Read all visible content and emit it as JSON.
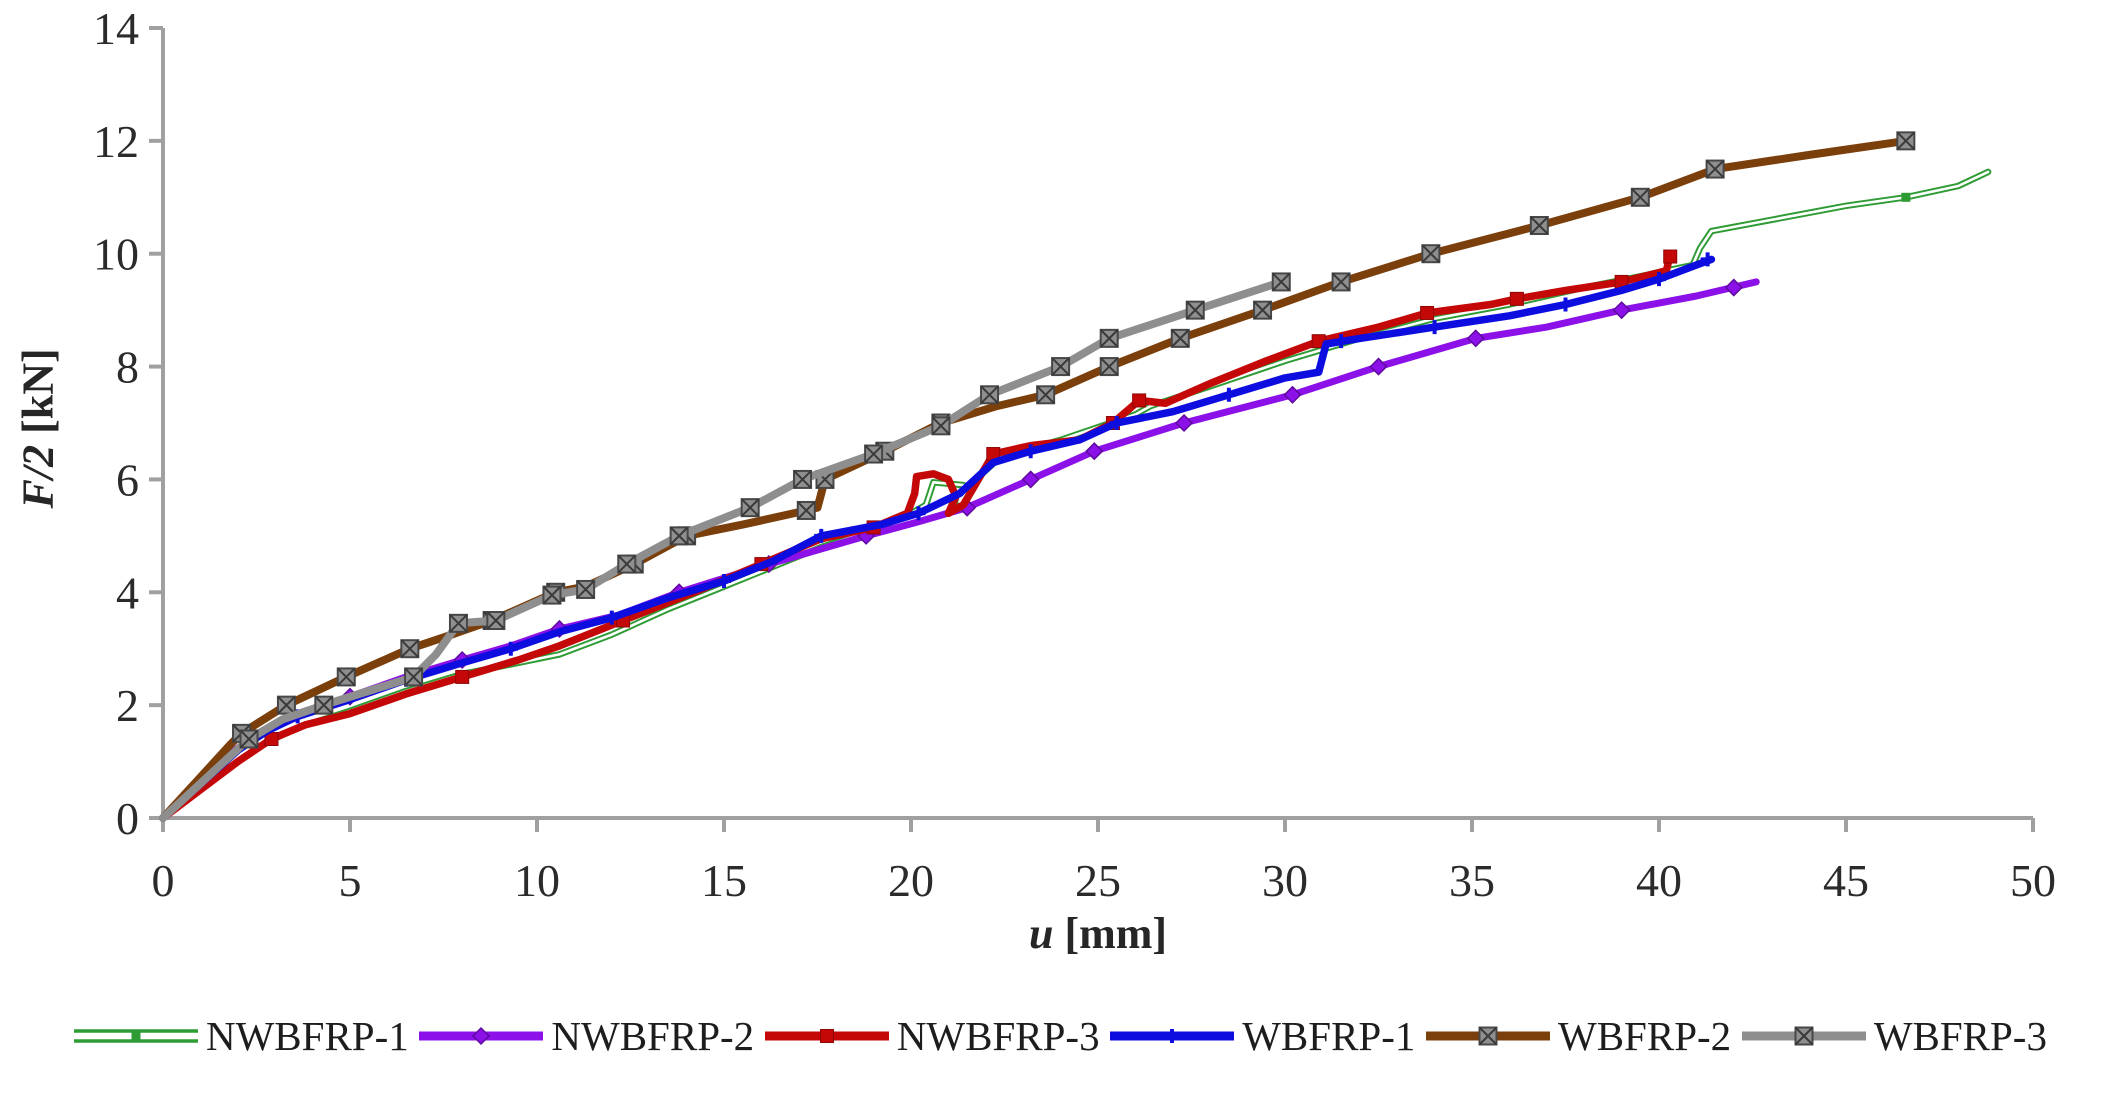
{
  "chart_data": {
    "type": "line",
    "title": "",
    "xlabel": "u [mm]",
    "ylabel": "F/2 [kN]",
    "xlabel_italic": "u",
    "xlabel_unit": " [mm]",
    "ylabel_italic": "F/2",
    "ylabel_unit": " [kN]",
    "xlim": [
      0,
      50
    ],
    "ylim": [
      0,
      14
    ],
    "xticks": [
      0,
      5,
      10,
      15,
      20,
      25,
      30,
      35,
      40,
      45,
      50
    ],
    "yticks": [
      0,
      2,
      4,
      6,
      8,
      10,
      12,
      14
    ],
    "grid": false,
    "legend_position": "bottom",
    "axis_color": "#a0a0a0",
    "tick_label_color": "#2b2b2b",
    "series": [
      {
        "name": "NWBFRP-1",
        "color": "#2E9B34",
        "marker": "tiny-square",
        "marker_fill": "#2E9B34",
        "marker_stroke": "#1e6b22",
        "double_line": true,
        "width": 6.5,
        "points": [
          [
            0,
            0
          ],
          [
            1,
            0.5
          ],
          [
            2,
            1.0
          ],
          [
            2.8,
            1.35
          ],
          [
            3.6,
            1.6
          ],
          [
            5,
            1.9
          ],
          [
            6.5,
            2.25
          ],
          [
            8,
            2.55
          ],
          [
            9.5,
            2.75
          ],
          [
            10.6,
            2.9
          ],
          [
            12,
            3.25
          ],
          [
            13.5,
            3.7
          ],
          [
            15,
            4.1
          ],
          [
            16.3,
            4.45
          ],
          [
            17.6,
            4.8
          ],
          [
            19,
            5.1
          ],
          [
            20,
            5.4
          ],
          [
            20.4,
            5.55
          ],
          [
            20.6,
            5.95
          ],
          [
            21.4,
            5.9
          ],
          [
            21.3,
            5.6
          ],
          [
            21.9,
            6.1
          ],
          [
            22.4,
            6.4
          ],
          [
            24,
            6.7
          ],
          [
            26,
            7.15
          ],
          [
            26.4,
            7.3
          ],
          [
            28,
            7.65
          ],
          [
            30,
            8.1
          ],
          [
            32,
            8.5
          ],
          [
            34,
            8.85
          ],
          [
            36,
            9.1
          ],
          [
            38,
            9.4
          ],
          [
            39.5,
            9.6
          ],
          [
            40.9,
            9.8
          ],
          [
            41.1,
            10.1
          ],
          [
            41.4,
            10.4
          ],
          [
            43,
            10.6
          ],
          [
            45,
            10.85
          ],
          [
            46.6,
            11.0
          ],
          [
            48,
            11.2
          ],
          [
            48.8,
            11.45
          ]
        ],
        "marker_points": [
          [
            46.6,
            11.0
          ]
        ]
      },
      {
        "name": "NWBFRP-2",
        "color": "#8C10E8",
        "marker": "diamond",
        "marker_fill": "#8C10E8",
        "marker_stroke": "#5e0a9e",
        "double_line": false,
        "width": 7,
        "points": [
          [
            0,
            0
          ],
          [
            0.9,
            0.6
          ],
          [
            1.8,
            1.15
          ],
          [
            2.7,
            1.55
          ],
          [
            3.6,
            1.85
          ],
          [
            5,
            2.15
          ],
          [
            6.5,
            2.5
          ],
          [
            8,
            2.8
          ],
          [
            9.3,
            3.05
          ],
          [
            10.6,
            3.35
          ],
          [
            12.2,
            3.6
          ],
          [
            13.8,
            4.0
          ],
          [
            16.2,
            4.5
          ],
          [
            18.8,
            5.0
          ],
          [
            20.2,
            5.25
          ],
          [
            21.5,
            5.5
          ],
          [
            23.2,
            6.0
          ],
          [
            24.9,
            6.5
          ],
          [
            27.3,
            7.0
          ],
          [
            30.2,
            7.5
          ],
          [
            32.5,
            8.0
          ],
          [
            35.1,
            8.5
          ],
          [
            37,
            8.7
          ],
          [
            39,
            9.0
          ],
          [
            41,
            9.25
          ],
          [
            42.6,
            9.5
          ]
        ],
        "marker_points": [
          [
            5,
            2.15
          ],
          [
            8,
            2.8
          ],
          [
            10.6,
            3.35
          ],
          [
            13.8,
            4.0
          ],
          [
            16.2,
            4.5
          ],
          [
            18.8,
            5.0
          ],
          [
            21.5,
            5.5
          ],
          [
            23.2,
            6.0
          ],
          [
            24.9,
            6.5
          ],
          [
            27.3,
            7.0
          ],
          [
            30.2,
            7.5
          ],
          [
            32.5,
            8.0
          ],
          [
            35.1,
            8.5
          ],
          [
            39,
            9.0
          ],
          [
            42,
            9.4
          ]
        ]
      },
      {
        "name": "NWBFRP-3",
        "color": "#C40808",
        "marker": "square",
        "marker_fill": "#C40808",
        "marker_stroke": "#8f0606",
        "double_line": false,
        "width": 7.5,
        "points": [
          [
            0,
            0
          ],
          [
            1,
            0.5
          ],
          [
            2,
            1.0
          ],
          [
            2.9,
            1.4
          ],
          [
            3.8,
            1.65
          ],
          [
            5,
            1.85
          ],
          [
            6.5,
            2.2
          ],
          [
            8,
            2.5
          ],
          [
            9.5,
            2.8
          ],
          [
            10.6,
            3.05
          ],
          [
            12.3,
            3.5
          ],
          [
            14.2,
            4.0
          ],
          [
            16,
            4.5
          ],
          [
            17.6,
            4.95
          ],
          [
            19,
            5.15
          ],
          [
            19.9,
            5.4
          ],
          [
            20.1,
            5.75
          ],
          [
            20.15,
            6.05
          ],
          [
            20.6,
            6.1
          ],
          [
            21.0,
            6.0
          ],
          [
            21.2,
            5.7
          ],
          [
            21.0,
            5.4
          ],
          [
            21.4,
            5.55
          ],
          [
            22.2,
            6.45
          ],
          [
            23.2,
            6.6
          ],
          [
            24.5,
            6.7
          ],
          [
            25.4,
            7.0
          ],
          [
            26.1,
            7.4
          ],
          [
            26.8,
            7.35
          ],
          [
            28,
            7.7
          ],
          [
            29.5,
            8.1
          ],
          [
            30.9,
            8.45
          ],
          [
            32.5,
            8.7
          ],
          [
            33.8,
            8.95
          ],
          [
            35.5,
            9.1
          ],
          [
            36.2,
            9.2
          ],
          [
            37.5,
            9.35
          ],
          [
            39,
            9.5
          ],
          [
            39.9,
            9.65
          ],
          [
            40.2,
            9.7
          ],
          [
            40.3,
            10.0
          ]
        ],
        "marker_points": [
          [
            2.9,
            1.4
          ],
          [
            8,
            2.5
          ],
          [
            12.3,
            3.5
          ],
          [
            16,
            4.5
          ],
          [
            19,
            5.15
          ],
          [
            22.2,
            6.45
          ],
          [
            25.4,
            7.0
          ],
          [
            26.1,
            7.4
          ],
          [
            30.9,
            8.45
          ],
          [
            33.8,
            8.95
          ],
          [
            36.2,
            9.2
          ],
          [
            39,
            9.5
          ],
          [
            40.3,
            9.95
          ]
        ]
      },
      {
        "name": "WBFRP-1",
        "color": "#0D0DE0",
        "marker": "cross",
        "marker_fill": "#0D0DE0",
        "marker_stroke": "#0a0aa8",
        "double_line": false,
        "width": 7.5,
        "points": [
          [
            0,
            0
          ],
          [
            1,
            0.6
          ],
          [
            2,
            1.2
          ],
          [
            2.8,
            1.55
          ],
          [
            3.6,
            1.8
          ],
          [
            5,
            2.1
          ],
          [
            6.5,
            2.45
          ],
          [
            8,
            2.75
          ],
          [
            9.3,
            3.0
          ],
          [
            10.6,
            3.3
          ],
          [
            12,
            3.55
          ],
          [
            13.5,
            3.9
          ],
          [
            15,
            4.2
          ],
          [
            16.3,
            4.55
          ],
          [
            17.6,
            5.0
          ],
          [
            19.2,
            5.2
          ],
          [
            20.2,
            5.4
          ],
          [
            21.3,
            5.75
          ],
          [
            22.2,
            6.3
          ],
          [
            23.2,
            6.5
          ],
          [
            24.5,
            6.7
          ],
          [
            25.5,
            7.0
          ],
          [
            27,
            7.2
          ],
          [
            28.5,
            7.5
          ],
          [
            30,
            7.8
          ],
          [
            30.9,
            7.9
          ],
          [
            31.1,
            8.4
          ],
          [
            32,
            8.5
          ],
          [
            34,
            8.7
          ],
          [
            36,
            8.9
          ],
          [
            37.5,
            9.1
          ],
          [
            39,
            9.35
          ],
          [
            40,
            9.55
          ],
          [
            41,
            9.8
          ],
          [
            41.4,
            9.9
          ]
        ],
        "marker_points": [
          [
            3.6,
            1.8
          ],
          [
            6.5,
            2.45
          ],
          [
            9.3,
            3.0
          ],
          [
            12,
            3.55
          ],
          [
            15,
            4.2
          ],
          [
            17.6,
            5.0
          ],
          [
            20.2,
            5.4
          ],
          [
            23.2,
            6.5
          ],
          [
            25.5,
            7.0
          ],
          [
            28.5,
            7.5
          ],
          [
            31.5,
            8.45
          ],
          [
            34,
            8.7
          ],
          [
            37.5,
            9.1
          ],
          [
            40,
            9.55
          ],
          [
            41.3,
            9.9
          ]
        ]
      },
      {
        "name": "WBFRP-2",
        "color": "#7B3F0C",
        "marker": "square-x",
        "marker_fill": "#8f8f8f",
        "marker_stroke": "#474747",
        "double_line": false,
        "width": 8,
        "points": [
          [
            0,
            0
          ],
          [
            0.9,
            0.65
          ],
          [
            1.8,
            1.3
          ],
          [
            2.1,
            1.5
          ],
          [
            3.3,
            2.0
          ],
          [
            4.9,
            2.5
          ],
          [
            6.6,
            3.0
          ],
          [
            7.5,
            3.2
          ],
          [
            8.8,
            3.5
          ],
          [
            10.5,
            4.0
          ],
          [
            11.3,
            4.1
          ],
          [
            12.6,
            4.5
          ],
          [
            14,
            5.0
          ],
          [
            15.5,
            5.2
          ],
          [
            17.2,
            5.45
          ],
          [
            17.5,
            5.5
          ],
          [
            17.7,
            6.0
          ],
          [
            19.3,
            6.5
          ],
          [
            20.8,
            7.0
          ],
          [
            22.3,
            7.3
          ],
          [
            23.6,
            7.5
          ],
          [
            25.3,
            8.0
          ],
          [
            27.2,
            8.5
          ],
          [
            29.4,
            9.0
          ],
          [
            31.5,
            9.5
          ],
          [
            33.9,
            10.0
          ],
          [
            36.8,
            10.5
          ],
          [
            39.5,
            11.0
          ],
          [
            41.5,
            11.5
          ],
          [
            44,
            11.75
          ],
          [
            46.6,
            12.0
          ]
        ],
        "marker_points": [
          [
            2.1,
            1.5
          ],
          [
            3.3,
            2.0
          ],
          [
            4.9,
            2.5
          ],
          [
            6.6,
            3.0
          ],
          [
            8.8,
            3.5
          ],
          [
            10.5,
            4.0
          ],
          [
            12.6,
            4.5
          ],
          [
            14,
            5.0
          ],
          [
            17.2,
            5.45
          ],
          [
            17.7,
            6.0
          ],
          [
            19.3,
            6.5
          ],
          [
            20.8,
            7.0
          ],
          [
            23.6,
            7.5
          ],
          [
            25.3,
            8.0
          ],
          [
            27.2,
            8.5
          ],
          [
            29.4,
            9.0
          ],
          [
            31.5,
            9.5
          ],
          [
            33.9,
            10.0
          ],
          [
            36.8,
            10.5
          ],
          [
            39.5,
            11.0
          ],
          [
            41.5,
            11.5
          ],
          [
            46.6,
            12.0
          ]
        ]
      },
      {
        "name": "WBFRP-3",
        "color": "#8E8E8E",
        "marker": "square-x",
        "marker_fill": "#8f8f8f",
        "marker_stroke": "#474747",
        "double_line": false,
        "width": 8,
        "points": [
          [
            0,
            0
          ],
          [
            0.9,
            0.55
          ],
          [
            1.8,
            1.1
          ],
          [
            2.3,
            1.4
          ],
          [
            3.2,
            1.75
          ],
          [
            4.3,
            2.0
          ],
          [
            5.5,
            2.25
          ],
          [
            6.7,
            2.5
          ],
          [
            7.3,
            2.9
          ],
          [
            7.9,
            3.45
          ],
          [
            8.9,
            3.5
          ],
          [
            10.4,
            3.95
          ],
          [
            11.3,
            4.05
          ],
          [
            12.4,
            4.5
          ],
          [
            13.8,
            5.0
          ],
          [
            15.7,
            5.5
          ],
          [
            17.1,
            6.0
          ],
          [
            19,
            6.45
          ],
          [
            20.8,
            6.95
          ],
          [
            22.1,
            7.5
          ],
          [
            24,
            8.0
          ],
          [
            25.3,
            8.5
          ],
          [
            27.6,
            9.0
          ],
          [
            29.9,
            9.5
          ]
        ],
        "marker_points": [
          [
            2.3,
            1.4
          ],
          [
            4.3,
            2.0
          ],
          [
            6.7,
            2.5
          ],
          [
            7.9,
            3.45
          ],
          [
            8.9,
            3.5
          ],
          [
            10.4,
            3.95
          ],
          [
            11.3,
            4.05
          ],
          [
            12.4,
            4.5
          ],
          [
            13.8,
            5.0
          ],
          [
            15.7,
            5.5
          ],
          [
            17.1,
            6.0
          ],
          [
            19,
            6.45
          ],
          [
            20.8,
            6.95
          ],
          [
            22.1,
            7.5
          ],
          [
            24,
            8.0
          ],
          [
            25.3,
            8.5
          ],
          [
            27.6,
            9.0
          ],
          [
            29.9,
            9.5
          ]
        ]
      }
    ]
  },
  "legend": {
    "labels": [
      "NWBFRP-1",
      "NWBFRP-2",
      "NWBFRP-3",
      "WBFRP-1",
      "WBFRP-2",
      "WBFRP-3"
    ]
  }
}
